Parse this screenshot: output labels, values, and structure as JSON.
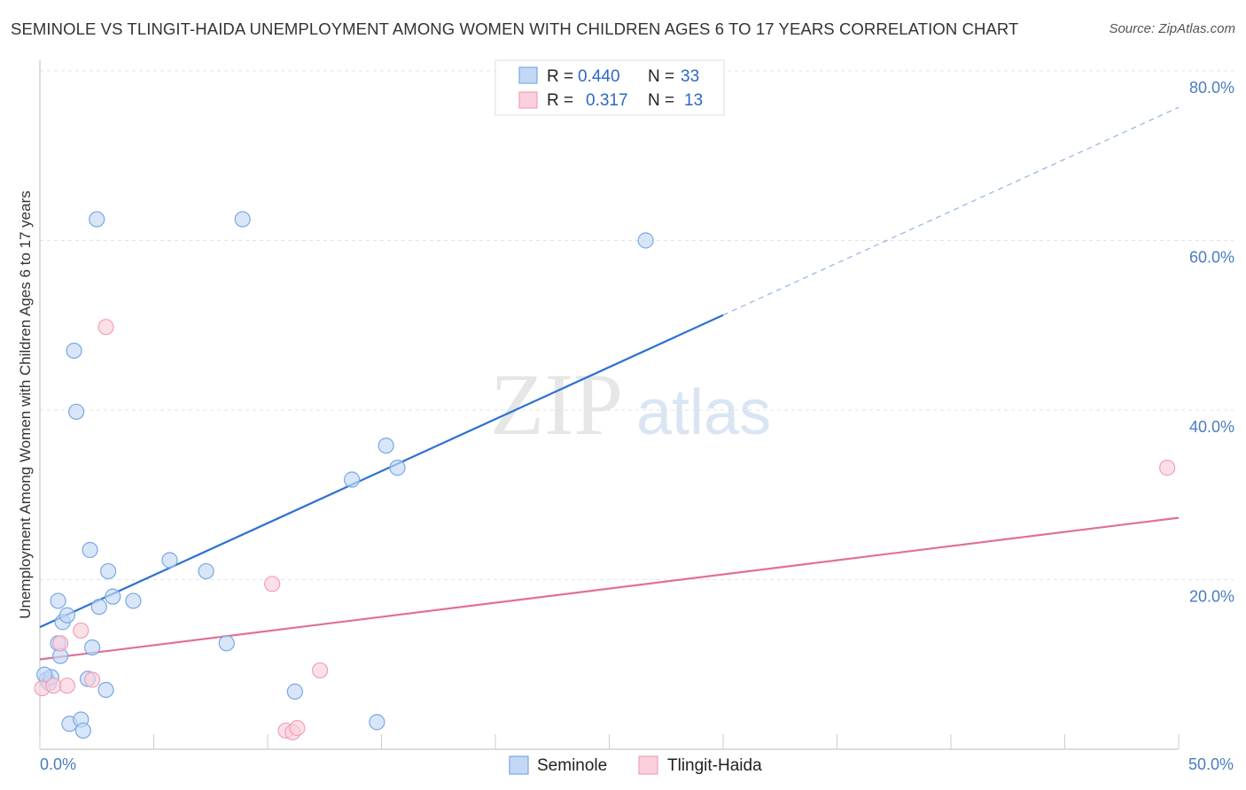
{
  "chart_data": {
    "type": "scatter",
    "title": "SEMINOLE VS TLINGIT-HAIDA UNEMPLOYMENT AMONG WOMEN WITH CHILDREN AGES 6 TO 17 YEARS CORRELATION CHART",
    "source": "Source: ZipAtlas.com",
    "xlabel": "",
    "ylabel": "Unemployment Among Women with Children Ages 6 to 17 years",
    "xlim": [
      0,
      50
    ],
    "ylim": [
      0,
      80
    ],
    "x_tick_labels": [
      "0.0%",
      "50.0%"
    ],
    "y_tick_labels": [
      "20.0%",
      "40.0%",
      "60.0%",
      "80.0%"
    ],
    "y_tick_values": [
      20,
      40,
      60,
      80
    ],
    "watermark": {
      "zip": "ZIP",
      "atlas": "atlas"
    },
    "legend_box": {
      "rows": [
        {
          "r_label": "R =",
          "r_value": "0.440",
          "n_label": "N =",
          "n_value": "33"
        },
        {
          "r_label": "R =",
          "r_value": "0.317",
          "n_label": "N =",
          "n_value": "13"
        }
      ]
    },
    "series": [
      {
        "name": "Seminole",
        "color": "#7aa8e6",
        "fill": "#c3d8f5",
        "line_color": "#2d72d2",
        "trend": {
          "x0": 0,
          "y0": 14.4,
          "x1": 30,
          "y1": 51.2,
          "dash_to_x": 50,
          "dash_to_y": 75.7
        },
        "points": [
          [
            0.3,
            8.2
          ],
          [
            0.4,
            7.8
          ],
          [
            0.5,
            8.5
          ],
          [
            0.8,
            12.5
          ],
          [
            0.8,
            17.5
          ],
          [
            0.9,
            11.0
          ],
          [
            1.0,
            15.0
          ],
          [
            1.2,
            15.8
          ],
          [
            1.3,
            3.0
          ],
          [
            1.5,
            47.0
          ],
          [
            1.6,
            39.8
          ],
          [
            1.8,
            3.5
          ],
          [
            1.9,
            2.2
          ],
          [
            2.1,
            8.3
          ],
          [
            2.2,
            23.5
          ],
          [
            2.3,
            12.0
          ],
          [
            2.5,
            62.5
          ],
          [
            2.6,
            16.8
          ],
          [
            2.9,
            7.0
          ],
          [
            3.0,
            21.0
          ],
          [
            3.2,
            18.0
          ],
          [
            4.1,
            17.5
          ],
          [
            5.7,
            22.3
          ],
          [
            7.3,
            21.0
          ],
          [
            8.2,
            12.5
          ],
          [
            8.9,
            62.5
          ],
          [
            11.2,
            6.8
          ],
          [
            13.7,
            31.8
          ],
          [
            14.8,
            3.2
          ],
          [
            15.2,
            35.8
          ],
          [
            15.7,
            33.2
          ],
          [
            26.6,
            60.0
          ],
          [
            0.2,
            8.8
          ]
        ]
      },
      {
        "name": "Tlingit-Haida",
        "color": "#f0a0b8",
        "fill": "#fbd0dc",
        "line_color": "#e07098",
        "trend": {
          "x0": 0,
          "y0": 10.6,
          "x1": 50,
          "y1": 27.3
        },
        "points": [
          [
            0.1,
            7.2
          ],
          [
            0.6,
            7.5
          ],
          [
            0.9,
            12.5
          ],
          [
            1.2,
            7.5
          ],
          [
            1.8,
            14.0
          ],
          [
            2.3,
            8.2
          ],
          [
            2.9,
            49.8
          ],
          [
            10.2,
            19.5
          ],
          [
            10.8,
            2.2
          ],
          [
            11.1,
            2.0
          ],
          [
            11.3,
            2.5
          ],
          [
            12.3,
            9.3
          ],
          [
            49.5,
            33.2
          ]
        ]
      }
    ]
  }
}
